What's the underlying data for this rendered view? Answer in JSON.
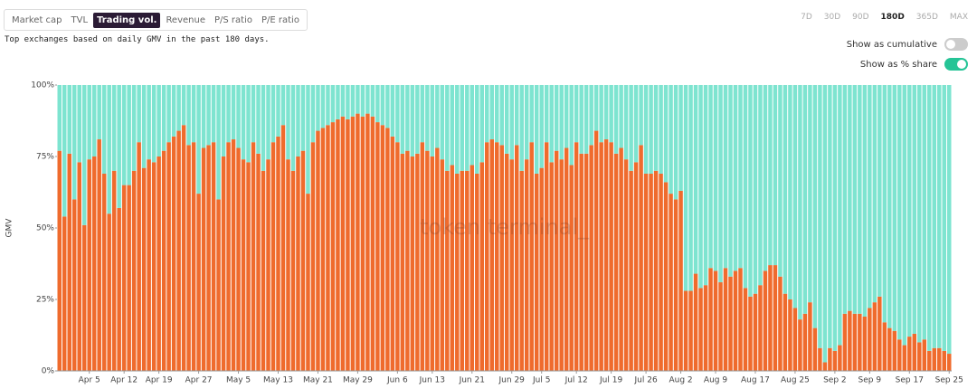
{
  "tabs": [
    {
      "label": "Market cap",
      "active": false
    },
    {
      "label": "TVL",
      "active": false
    },
    {
      "label": "Trading vol.",
      "active": true
    },
    {
      "label": "Revenue",
      "active": false
    },
    {
      "label": "P/S ratio",
      "active": false
    },
    {
      "label": "P/E ratio",
      "active": false
    }
  ],
  "subtitle": "Top exchanges based on daily GMV in the past 180 days.",
  "ranges": [
    {
      "label": "7D",
      "active": false
    },
    {
      "label": "30D",
      "active": false
    },
    {
      "label": "90D",
      "active": false
    },
    {
      "label": "180D",
      "active": true
    },
    {
      "label": "365D",
      "active": false
    },
    {
      "label": "MAX",
      "active": false
    }
  ],
  "toggles": [
    {
      "label": "Show as cumulative",
      "on": false
    },
    {
      "label": "Show as % share",
      "on": true
    }
  ],
  "chart_data": {
    "type": "bar",
    "stacked": true,
    "y_label": "GMV",
    "watermark": "token terminal_",
    "categories": [
      null,
      null,
      null,
      null,
      null,
      null,
      "Apr 5",
      null,
      null,
      null,
      null,
      null,
      null,
      "Apr 12",
      null,
      null,
      null,
      null,
      null,
      null,
      "Apr 19",
      null,
      null,
      null,
      null,
      null,
      null,
      null,
      "Apr 27",
      null,
      null,
      null,
      null,
      null,
      null,
      null,
      "May 5",
      null,
      null,
      null,
      null,
      null,
      null,
      null,
      "May 13",
      null,
      null,
      null,
      null,
      null,
      null,
      null,
      "May 21",
      null,
      null,
      null,
      null,
      null,
      null,
      null,
      "May 29",
      null,
      null,
      null,
      null,
      null,
      null,
      null,
      "Jun 6",
      null,
      null,
      null,
      null,
      null,
      null,
      "Jun 13",
      null,
      null,
      null,
      null,
      null,
      null,
      null,
      "Jun 21",
      null,
      null,
      null,
      null,
      null,
      null,
      null,
      "Jun 29",
      null,
      null,
      null,
      null,
      null,
      "Jul 5",
      null,
      null,
      null,
      null,
      null,
      null,
      "Jul 12",
      null,
      null,
      null,
      null,
      null,
      null,
      "Jul 19",
      null,
      null,
      null,
      null,
      null,
      null,
      "Jul 26",
      null,
      null,
      null,
      null,
      null,
      null,
      "Aug 2",
      null,
      null,
      null,
      null,
      null,
      null,
      "Aug 9",
      null,
      null,
      null,
      null,
      null,
      null,
      null,
      "Aug 17",
      null,
      null,
      null,
      null,
      null,
      null,
      null,
      "Aug 25",
      null,
      null,
      null,
      null,
      null,
      null,
      null,
      "Sep 2",
      null,
      null,
      null,
      null,
      null,
      null,
      "Sep 9",
      null,
      null,
      null,
      null,
      null,
      null,
      null,
      "Sep 17",
      null,
      null,
      null,
      null,
      null,
      null,
      null,
      "Sep 25"
    ],
    "series": [
      {
        "color": "#ef6b2d",
        "values": [
          77,
          54,
          76,
          60,
          73,
          51,
          74,
          75,
          81,
          69,
          55,
          70,
          57,
          65,
          65,
          70,
          80,
          71,
          74,
          73,
          75,
          77,
          80,
          82,
          84,
          86,
          79,
          80,
          62,
          78,
          79,
          80,
          60,
          75,
          80,
          81,
          78,
          74,
          73,
          80,
          76,
          70,
          74,
          80,
          82,
          86,
          74,
          70,
          75,
          77,
          62,
          80,
          84,
          85,
          86,
          87,
          88,
          89,
          88,
          89,
          90,
          89,
          90,
          89,
          87,
          86,
          85,
          82,
          80,
          76,
          77,
          75,
          76,
          80,
          77,
          75,
          78,
          74,
          70,
          72,
          69,
          70,
          70,
          72,
          69,
          73,
          80,
          81,
          80,
          79,
          76,
          74,
          79,
          70,
          74,
          80,
          69,
          71,
          80,
          73,
          77,
          74,
          78,
          72,
          80,
          76,
          76,
          79,
          84,
          80,
          81,
          80,
          76,
          78,
          74,
          70,
          73,
          79,
          69,
          69,
          70,
          69,
          66,
          62,
          60,
          63,
          28,
          28,
          34,
          29,
          30,
          36,
          35,
          31,
          36,
          33,
          35,
          36,
          29,
          26,
          27,
          30,
          35,
          37,
          37,
          33,
          27,
          25,
          22,
          18,
          20,
          24,
          15,
          8,
          3,
          8,
          7,
          9,
          20,
          21,
          20,
          20,
          19,
          22,
          24,
          26,
          17,
          15,
          14,
          11,
          9,
          12,
          13,
          10,
          11,
          7,
          8,
          8,
          7,
          6
        ]
      },
      {
        "color": "#7ee4d0",
        "values": [
          23,
          46,
          24,
          40,
          27,
          49,
          26,
          25,
          19,
          31,
          45,
          30,
          43,
          35,
          35,
          30,
          20,
          29,
          26,
          27,
          25,
          23,
          20,
          18,
          16,
          14,
          21,
          20,
          38,
          22,
          21,
          20,
          40,
          25,
          20,
          19,
          22,
          26,
          27,
          20,
          24,
          30,
          26,
          20,
          18,
          14,
          26,
          30,
          25,
          23,
          38,
          20,
          16,
          15,
          14,
          13,
          12,
          11,
          12,
          11,
          10,
          11,
          10,
          11,
          13,
          14,
          15,
          18,
          20,
          24,
          23,
          25,
          24,
          20,
          23,
          25,
          22,
          26,
          30,
          28,
          31,
          30,
          30,
          28,
          31,
          27,
          20,
          19,
          20,
          21,
          24,
          26,
          21,
          30,
          26,
          20,
          31,
          29,
          20,
          27,
          23,
          26,
          22,
          28,
          20,
          24,
          24,
          21,
          16,
          20,
          19,
          20,
          24,
          22,
          26,
          30,
          27,
          21,
          31,
          31,
          30,
          31,
          34,
          38,
          40,
          37,
          72,
          72,
          66,
          71,
          70,
          64,
          65,
          69,
          64,
          67,
          65,
          64,
          71,
          74,
          73,
          70,
          65,
          63,
          63,
          67,
          73,
          75,
          78,
          82,
          80,
          76,
          85,
          92,
          97,
          92,
          93,
          91,
          80,
          79,
          80,
          80,
          81,
          78,
          76,
          74,
          83,
          85,
          86,
          89,
          91,
          88,
          87,
          90,
          89,
          93,
          92,
          92,
          93,
          94
        ]
      }
    ],
    "ylim": [
      0,
      100
    ],
    "yticks": [
      {
        "value": 0,
        "label": "0%"
      },
      {
        "value": 25,
        "label": "25%"
      },
      {
        "value": 50,
        "label": "50%"
      },
      {
        "value": 75,
        "label": "75%"
      },
      {
        "value": 100,
        "label": "100%"
      }
    ]
  }
}
